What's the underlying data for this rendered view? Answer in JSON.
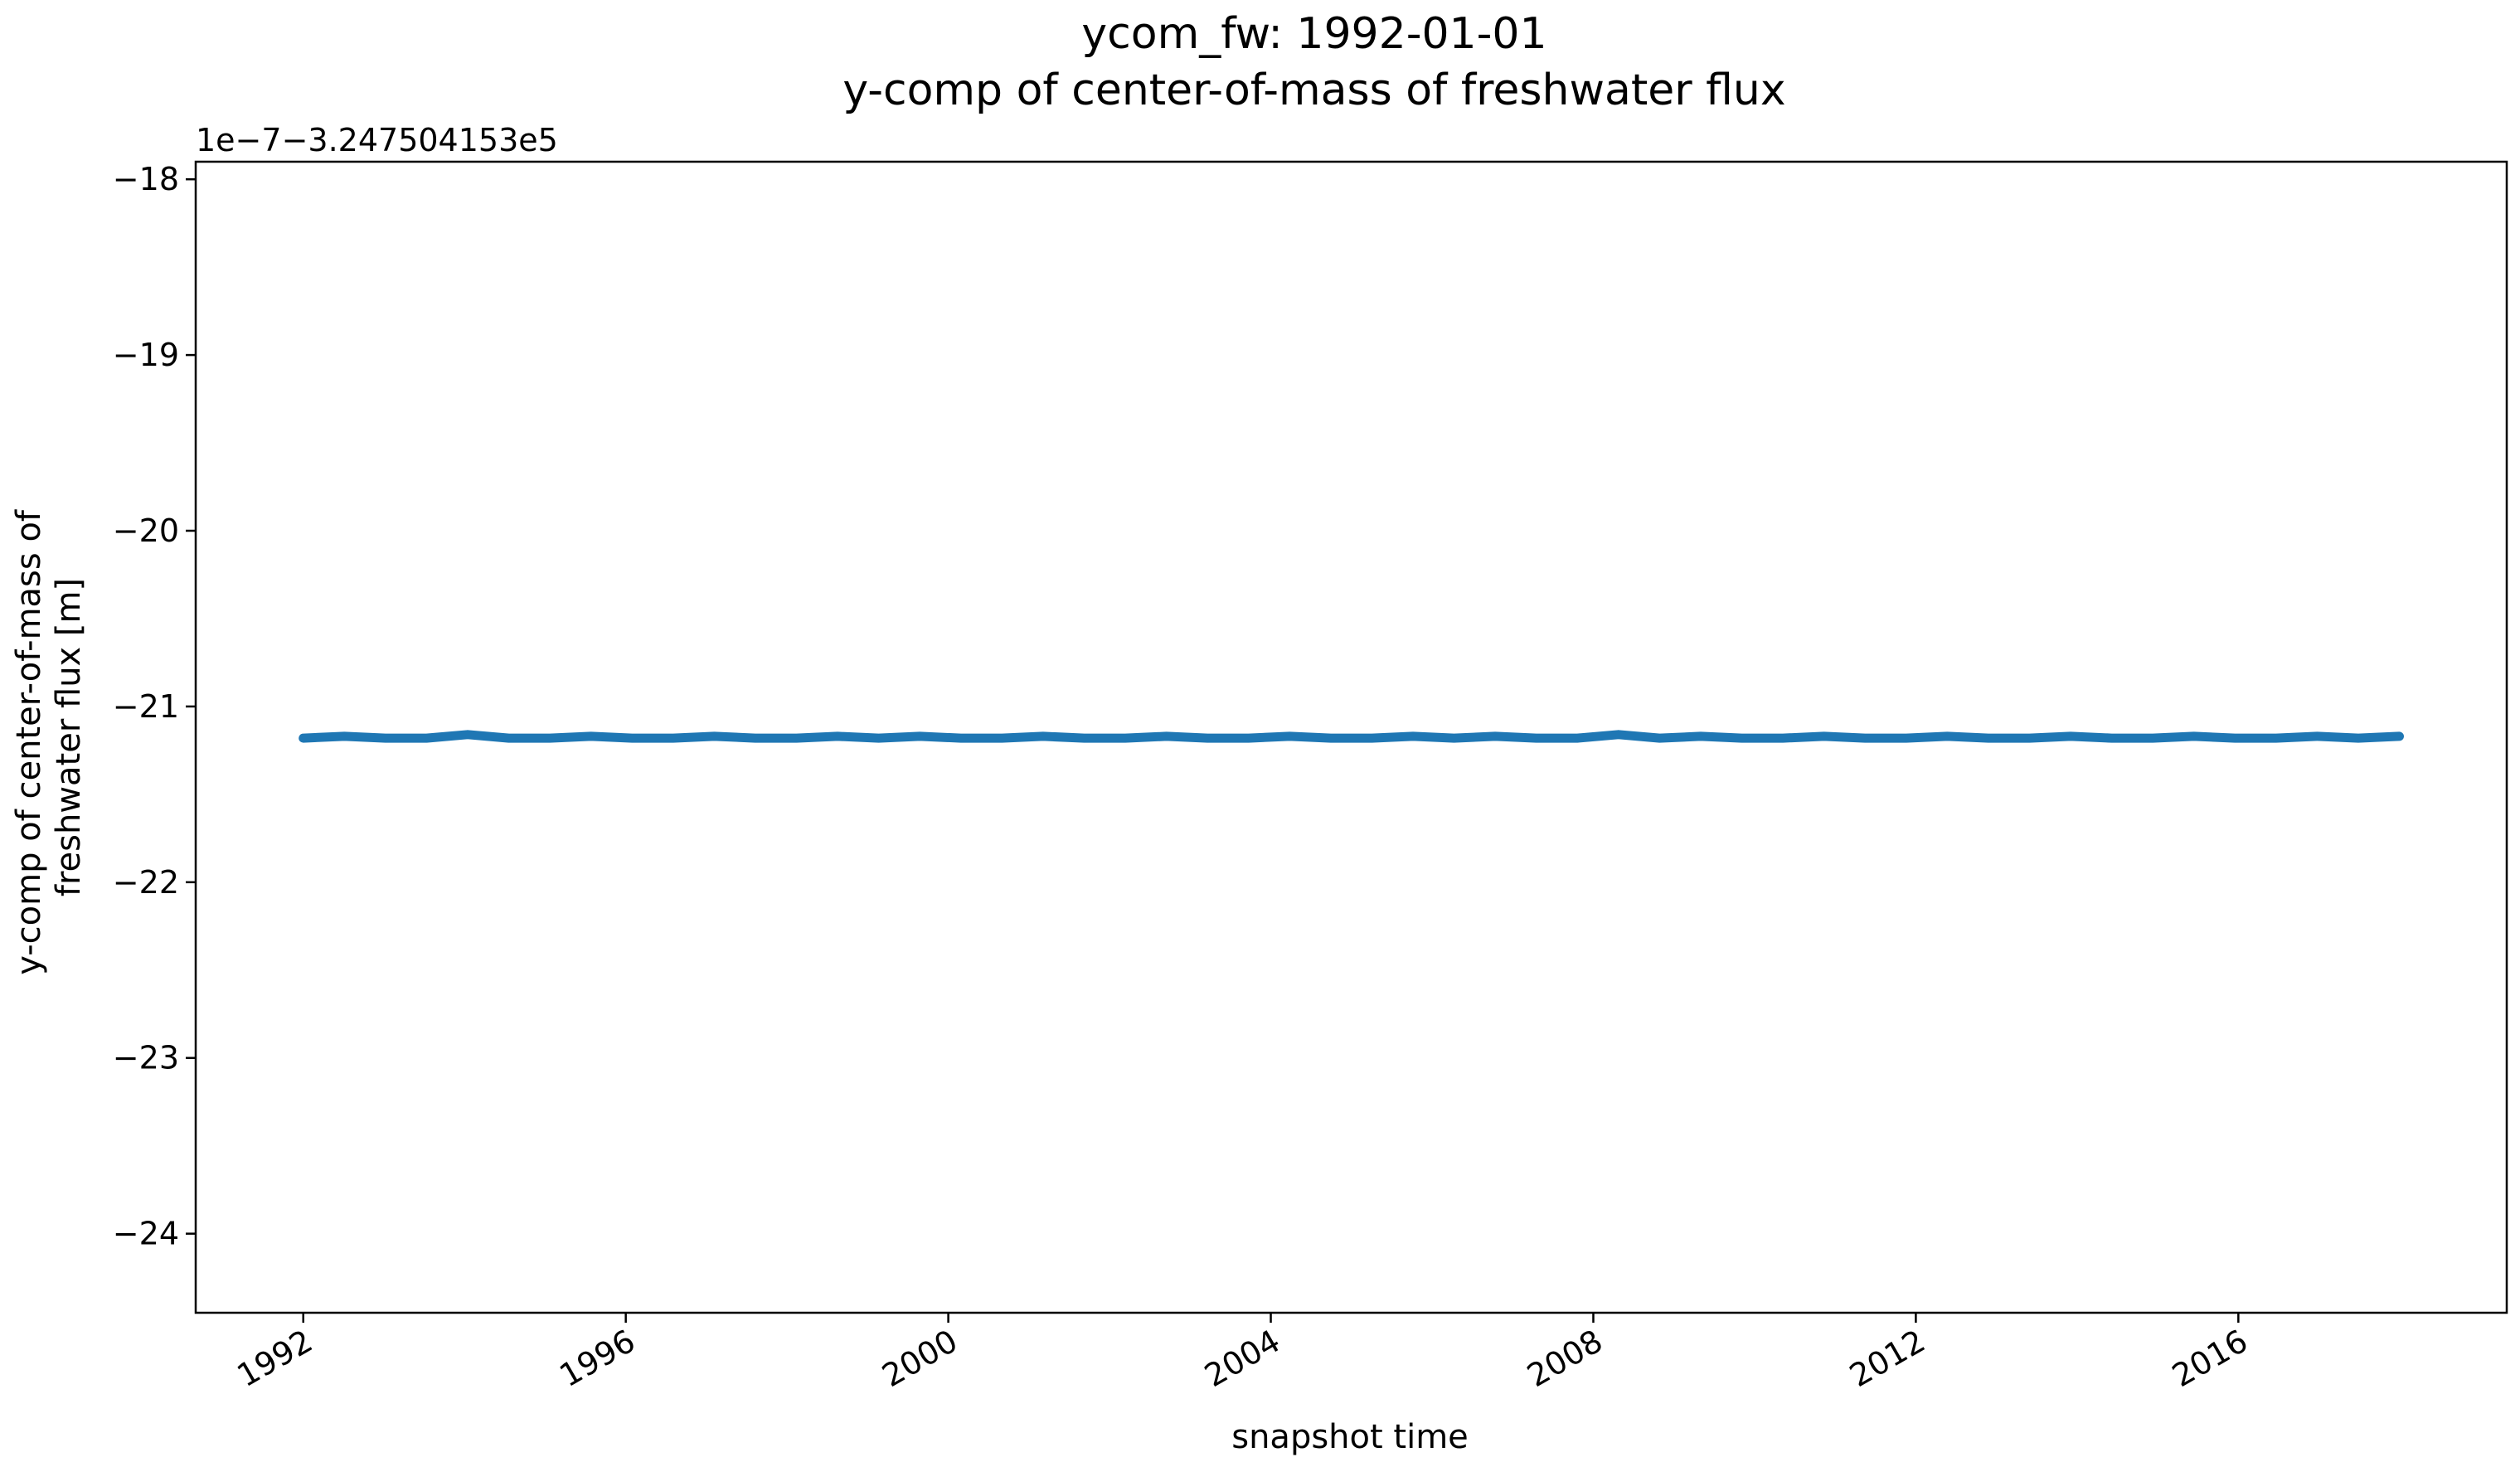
{
  "chart_data": {
    "type": "line",
    "title": "ycom_fw: 1992-01-01",
    "subtitle": "y-comp of center-of-mass of freshwater flux",
    "xlabel": "snapshot time",
    "ylabel": "y-comp of center-of-mass of freshwater flux [m]",
    "y_offset_text": "1e−7−3.247504153e5",
    "x_tick_labels": [
      "1992",
      "1996",
      "2000",
      "2004",
      "2008",
      "2012",
      "2016"
    ],
    "y_tick_labels": [
      "−18",
      "−19",
      "−20",
      "−21",
      "−22",
      "−23",
      "−24"
    ],
    "xlim": [
      "1990-09-01",
      "2019-05-01"
    ],
    "ylim": [
      -24.45,
      -17.9
    ],
    "grid": false,
    "legend": "none",
    "series": [
      {
        "color": "#1f77b4",
        "x_start": "1992-01-01",
        "x_end": "2017-12-31",
        "values": [
          -21.18,
          -21.17,
          -21.18,
          -21.18,
          -21.16,
          -21.18,
          -21.18,
          -21.17,
          -21.18,
          -21.18,
          -21.17,
          -21.18,
          -21.18,
          -21.17,
          -21.18,
          -21.17,
          -21.18,
          -21.18,
          -21.17,
          -21.18,
          -21.18,
          -21.17,
          -21.18,
          -21.18,
          -21.17,
          -21.18,
          -21.18,
          -21.17,
          -21.18,
          -21.17,
          -21.18,
          -21.18,
          -21.16,
          -21.18,
          -21.17,
          -21.18,
          -21.18,
          -21.17,
          -21.18,
          -21.18,
          -21.17,
          -21.18,
          -21.18,
          -21.17,
          -21.18,
          -21.18,
          -21.17,
          -21.18,
          -21.18,
          -21.17,
          -21.18,
          -21.17
        ]
      }
    ]
  }
}
